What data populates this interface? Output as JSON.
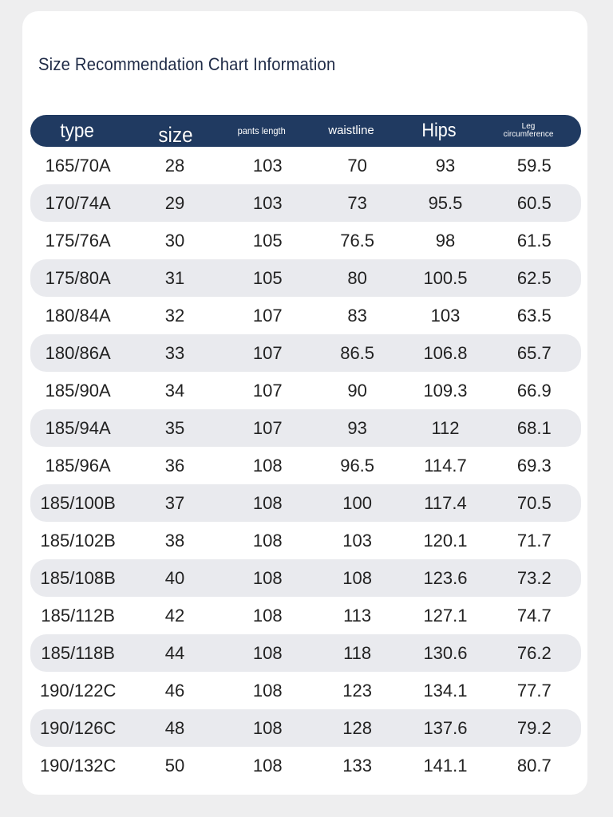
{
  "title": "Size Recommendation Chart Information",
  "table": {
    "headers": {
      "type": "type",
      "size": "size",
      "pants_length": "pants length",
      "waistline": "waistline",
      "hips": "Hips",
      "leg_line1": "Leg",
      "leg_line2": "circumference"
    },
    "rows": [
      {
        "type": "165/70A",
        "size": "28",
        "pants_length": "103",
        "waistline": "70",
        "hips": "93",
        "leg": "59.5"
      },
      {
        "type": "170/74A",
        "size": "29",
        "pants_length": "103",
        "waistline": "73",
        "hips": "95.5",
        "leg": "60.5"
      },
      {
        "type": "175/76A",
        "size": "30",
        "pants_length": "105",
        "waistline": "76.5",
        "hips": "98",
        "leg": "61.5"
      },
      {
        "type": "175/80A",
        "size": "31",
        "pants_length": "105",
        "waistline": "80",
        "hips": "100.5",
        "leg": "62.5"
      },
      {
        "type": "180/84A",
        "size": "32",
        "pants_length": "107",
        "waistline": "83",
        "hips": "103",
        "leg": "63.5"
      },
      {
        "type": "180/86A",
        "size": "33",
        "pants_length": "107",
        "waistline": "86.5",
        "hips": "106.8",
        "leg": "65.7"
      },
      {
        "type": "185/90A",
        "size": "34",
        "pants_length": "107",
        "waistline": "90",
        "hips": "109.3",
        "leg": "66.9"
      },
      {
        "type": "185/94A",
        "size": "35",
        "pants_length": "107",
        "waistline": "93",
        "hips": "112",
        "leg": "68.1"
      },
      {
        "type": "185/96A",
        "size": "36",
        "pants_length": "108",
        "waistline": "96.5",
        "hips": "114.7",
        "leg": "69.3"
      },
      {
        "type": "185/100B",
        "size": "37",
        "pants_length": "108",
        "waistline": "100",
        "hips": "117.4",
        "leg": "70.5"
      },
      {
        "type": "185/102B",
        "size": "38",
        "pants_length": "108",
        "waistline": "103",
        "hips": "120.1",
        "leg": "71.7"
      },
      {
        "type": "185/108B",
        "size": "40",
        "pants_length": "108",
        "waistline": "108",
        "hips": "123.6",
        "leg": "73.2"
      },
      {
        "type": "185/112B",
        "size": "42",
        "pants_length": "108",
        "waistline": "113",
        "hips": "127.1",
        "leg": "74.7"
      },
      {
        "type": "185/118B",
        "size": "44",
        "pants_length": "108",
        "waistline": "118",
        "hips": "130.6",
        "leg": "76.2"
      },
      {
        "type": "190/122C",
        "size": "46",
        "pants_length": "108",
        "waistline": "123",
        "hips": "134.1",
        "leg": "77.7"
      },
      {
        "type": "190/126C",
        "size": "48",
        "pants_length": "108",
        "waistline": "128",
        "hips": "137.6",
        "leg": "79.2"
      },
      {
        "type": "190/132C",
        "size": "50",
        "pants_length": "108",
        "waistline": "133",
        "hips": "141.1",
        "leg": "80.7"
      }
    ]
  },
  "colors": {
    "header_bg": "#203a61",
    "title": "#1f2b47",
    "stripe": "#e9eaee"
  }
}
